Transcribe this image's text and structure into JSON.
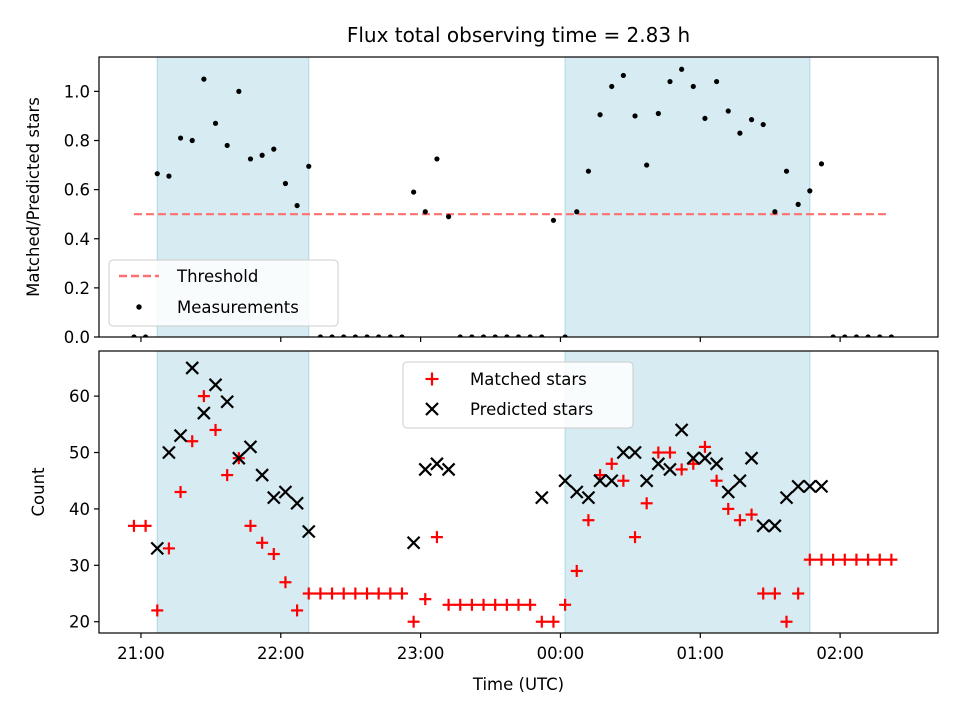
{
  "chart_data": [
    {
      "type": "scatter",
      "title": "Flux total observing time = 2.83 h",
      "xlabel": "",
      "ylabel": "Matched/Predicted stars",
      "xlim": [
        "20:42",
        "02:42"
      ],
      "ylim": [
        0,
        1.14
      ],
      "yticks": [
        0.0,
        0.2,
        0.4,
        0.6,
        0.8,
        1.0
      ],
      "ytick_labels": [
        "0.0",
        "0.2",
        "0.4",
        "0.6",
        "0.8",
        "1.0"
      ],
      "legend_location": "lower left",
      "shaded_intervals": [
        [
          "21:07",
          "22:12"
        ],
        [
          "00:02",
          "01:47"
        ]
      ],
      "shade_color": "#add8e6",
      "series": [
        {
          "name": "Threshold",
          "kind": "dashed-line",
          "color": "#ff7070",
          "x": [
            "20:57",
            "02:20"
          ],
          "y": [
            0.5,
            0.5
          ]
        },
        {
          "name": "Measurements",
          "kind": "points",
          "color": "#000000",
          "x": [
            "20:57",
            "21:02",
            "21:07",
            "21:12",
            "21:17",
            "21:22",
            "21:27",
            "21:32",
            "21:37",
            "21:42",
            "21:47",
            "21:52",
            "21:57",
            "22:02",
            "22:07",
            "22:12",
            "22:17",
            "22:22",
            "22:27",
            "22:32",
            "22:37",
            "22:42",
            "22:47",
            "22:52",
            "22:57",
            "23:02",
            "23:07",
            "23:12",
            "23:17",
            "23:22",
            "23:27",
            "23:32",
            "23:37",
            "23:42",
            "23:47",
            "23:52",
            "23:57",
            "00:02",
            "00:07",
            "00:12",
            "00:17",
            "00:22",
            "00:27",
            "00:32",
            "00:37",
            "00:42",
            "00:47",
            "00:52",
            "00:57",
            "01:02",
            "01:07",
            "01:12",
            "01:17",
            "01:22",
            "01:27",
            "01:32",
            "01:37",
            "01:42",
            "01:47",
            "01:52",
            "01:57",
            "02:02",
            "02:07",
            "02:12",
            "02:17",
            "02:22"
          ],
          "y": [
            0,
            0,
            0.665,
            0.655,
            0.81,
            0.8,
            1.05,
            0.87,
            0.78,
            1.0,
            0.725,
            0.74,
            0.765,
            0.625,
            0.535,
            0.695,
            0,
            0,
            0,
            0,
            0,
            0,
            0,
            0,
            0.59,
            0.51,
            0.725,
            0.49,
            0,
            0,
            0,
            0,
            0,
            0,
            0,
            0,
            0.475,
            0,
            0.51,
            0.675,
            0.905,
            1.02,
            1.065,
            0.9,
            0.7,
            0.91,
            1.04,
            1.09,
            1.02,
            0.89,
            1.04,
            0.92,
            0.83,
            0.885,
            0.865,
            0.51,
            0.675,
            0.54,
            0.595,
            0.705,
            0,
            0,
            0,
            0,
            0,
            0
          ]
        }
      ]
    },
    {
      "type": "scatter",
      "title": "",
      "xlabel": "Time (UTC)",
      "ylabel": "Count",
      "xlim": [
        "20:42",
        "02:42"
      ],
      "ylim": [
        18,
        68
      ],
      "yticks": [
        20,
        30,
        40,
        50,
        60
      ],
      "ytick_labels": [
        "20",
        "30",
        "40",
        "50",
        "60"
      ],
      "xticks": [
        "21:00",
        "22:00",
        "23:00",
        "00:00",
        "01:00",
        "02:00"
      ],
      "xtick_labels": [
        "21:00",
        "22:00",
        "23:00",
        "00:00",
        "01:00",
        "02:00"
      ],
      "legend_location": "upper center",
      "shaded_intervals": [
        [
          "21:07",
          "22:12"
        ],
        [
          "00:02",
          "01:47"
        ]
      ],
      "shade_color": "#add8e6",
      "series": [
        {
          "name": "Matched stars",
          "kind": "plus",
          "color": "#ff0000",
          "x": [
            "20:57",
            "21:02",
            "21:07",
            "21:12",
            "21:17",
            "21:22",
            "21:27",
            "21:32",
            "21:37",
            "21:42",
            "21:47",
            "21:52",
            "21:57",
            "22:02",
            "22:07",
            "22:12",
            "22:17",
            "22:22",
            "22:27",
            "22:32",
            "22:37",
            "22:42",
            "22:47",
            "22:52",
            "22:57",
            "23:02",
            "23:07",
            "23:12",
            "23:17",
            "23:22",
            "23:27",
            "23:32",
            "23:37",
            "23:42",
            "23:47",
            "23:52",
            "23:57",
            "00:02",
            "00:07",
            "00:12",
            "00:17",
            "00:22",
            "00:27",
            "00:32",
            "00:37",
            "00:42",
            "00:47",
            "00:52",
            "00:57",
            "01:02",
            "01:07",
            "01:12",
            "01:17",
            "01:22",
            "01:27",
            "01:32",
            "01:37",
            "01:42",
            "01:47",
            "01:52",
            "01:57",
            "02:02",
            "02:07",
            "02:12",
            "02:17",
            "02:22"
          ],
          "y": [
            37,
            37,
            22,
            33,
            43,
            52,
            60,
            54,
            46,
            49,
            37,
            34,
            32,
            27,
            22,
            25,
            25,
            25,
            25,
            25,
            25,
            25,
            25,
            25,
            20,
            24,
            35,
            23,
            23,
            23,
            23,
            23,
            23,
            23,
            23,
            20,
            20,
            23,
            29,
            38,
            46,
            48,
            45,
            35,
            41,
            50,
            50,
            47,
            48,
            51,
            45,
            40,
            38,
            39,
            25,
            25,
            20,
            25,
            31,
            31,
            31,
            31,
            31,
            31,
            31,
            31
          ]
        },
        {
          "name": "Predicted stars",
          "kind": "x",
          "color": "#000000",
          "x": [
            "21:07",
            "21:12",
            "21:17",
            "21:22",
            "21:27",
            "21:32",
            "21:37",
            "21:42",
            "21:47",
            "21:52",
            "21:57",
            "22:02",
            "22:07",
            "22:12",
            "22:57",
            "23:02",
            "23:07",
            "23:12",
            "23:52",
            "00:02",
            "00:07",
            "00:12",
            "00:17",
            "00:22",
            "00:27",
            "00:32",
            "00:37",
            "00:42",
            "00:47",
            "00:52",
            "00:57",
            "01:02",
            "01:07",
            "01:12",
            "01:17",
            "01:22",
            "01:27",
            "01:32",
            "01:37",
            "01:42",
            "01:47",
            "01:52"
          ],
          "y": [
            33,
            50,
            53,
            65,
            57,
            62,
            59,
            49,
            51,
            46,
            42,
            43,
            41,
            36,
            34,
            47,
            48,
            47,
            42,
            45,
            43,
            42,
            45,
            45,
            50,
            50,
            45,
            48,
            47,
            54,
            49,
            49,
            48,
            43,
            45,
            49,
            37,
            37,
            42,
            44,
            44,
            44
          ]
        }
      ]
    }
  ]
}
